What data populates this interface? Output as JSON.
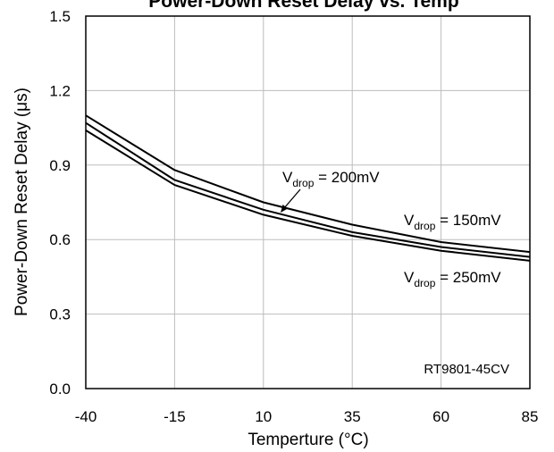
{
  "chart_data": {
    "type": "line",
    "title": "Power-Down Reset Delay vs. Temp",
    "xlabel": "Temperture (°C)",
    "ylabel": "Power-Down Reset Delay (μs)",
    "xlim": [
      -40,
      85
    ],
    "ylim": [
      0,
      1.5
    ],
    "xticks": [
      -40,
      -15,
      10,
      35,
      60,
      85
    ],
    "yticks": [
      "0.0",
      "0.3",
      "0.6",
      "0.9",
      "1.2",
      "1.5"
    ],
    "grid": true,
    "x": [
      -40,
      -15,
      10,
      35,
      60,
      85
    ],
    "series": [
      {
        "name": "Vdrop = 150mV",
        "values": [
          1.1,
          0.88,
          0.75,
          0.66,
          0.59,
          0.55
        ]
      },
      {
        "name": "Vdrop = 200mV",
        "values": [
          1.07,
          0.84,
          0.72,
          0.63,
          0.57,
          0.53
        ]
      },
      {
        "name": "Vdrop = 250mV",
        "values": [
          1.04,
          0.82,
          0.7,
          0.615,
          0.555,
          0.515
        ]
      }
    ],
    "annotations": [
      {
        "label_main": "V",
        "label_sub": "drop",
        "label_rest": " = 200mV"
      },
      {
        "label_main": "V",
        "label_sub": "drop",
        "label_rest": " = 150mV"
      },
      {
        "label_main": "V",
        "label_sub": "drop",
        "label_rest": " = 250mV"
      }
    ],
    "note": "RT9801-45CV"
  }
}
